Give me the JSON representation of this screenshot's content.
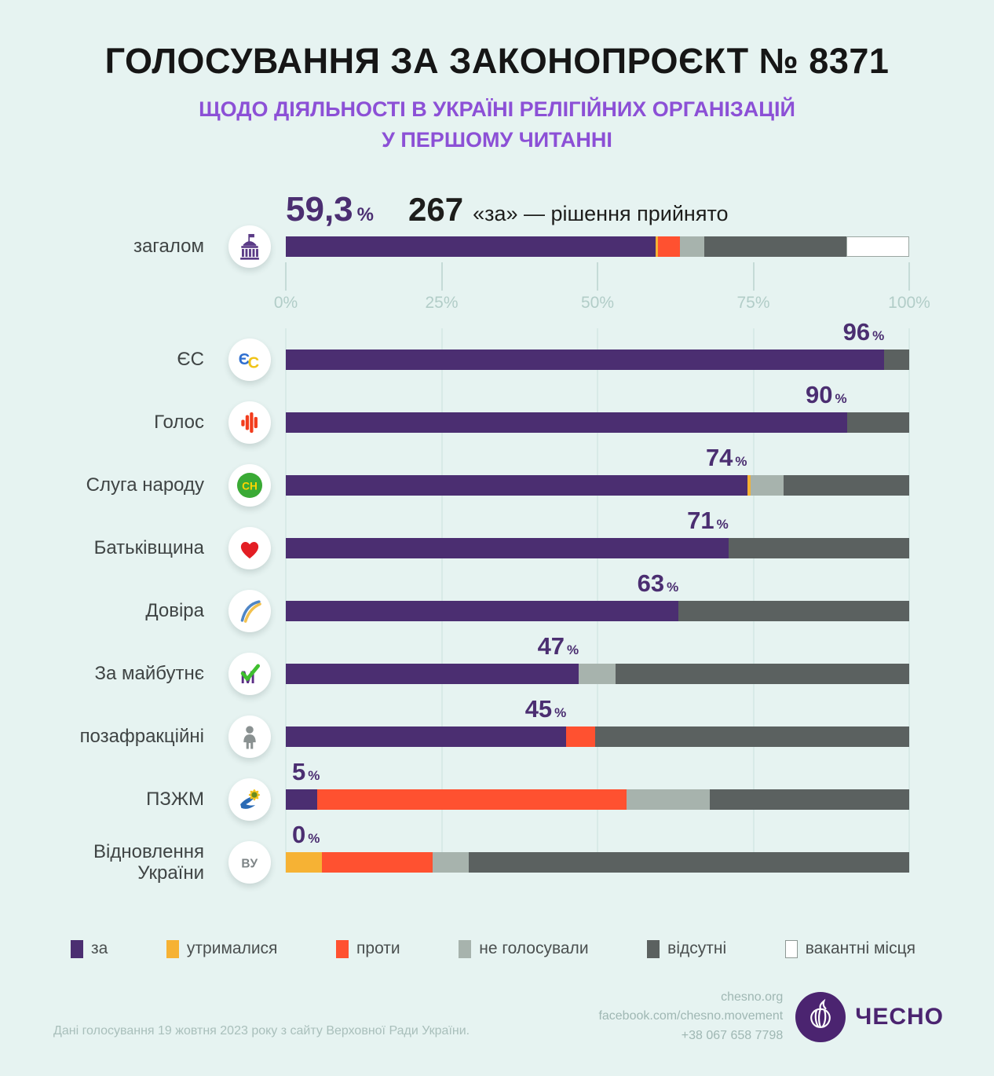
{
  "title": "ГОЛОСУВАННЯ ЗА ЗАКОНОПРОЄКТ № 8371",
  "subtitle_line1": "ЩОДО ДІЯЛЬНОСТІ В УКРАЇНІ РЕЛІГІЙНИХ ОРГАНІЗАЦІЙ",
  "subtitle_line2": "У ПЕРШОМУ ЧИТАННІ",
  "summary": {
    "percent": "59,3",
    "percent_sign": "%",
    "votes": "267",
    "caption": "«за» — рішення прийнято"
  },
  "axis": {
    "ticks": [
      "0%",
      "25%",
      "50%",
      "75%",
      "100%"
    ],
    "positions": [
      0,
      25,
      50,
      75,
      100
    ]
  },
  "colors": {
    "za": "#4b2e71",
    "utrymalysia": "#f6b234",
    "proty": "#ff5130",
    "ne_holosuvaly": "#a7b3ad",
    "vidsutni": "#5b6160",
    "vakantni": "#ffffff",
    "background": "#e6f3f1",
    "subtitle": "#8c50d6",
    "brand": "#4b2470"
  },
  "chart_data": {
    "type": "bar",
    "orientation": "horizontal",
    "stacked": true,
    "xlim": [
      0,
      100
    ],
    "unit": "percent",
    "segment_keys": [
      "za",
      "utrymalysia",
      "proty",
      "ne_holosuvaly",
      "vidsutni",
      "vakantni"
    ],
    "rows": [
      {
        "label": "загалом",
        "icon": "parliament-icon",
        "overall": true,
        "value_label": "59,3",
        "segments": {
          "za": 59.3,
          "utrymalysia": 0.4,
          "proty": 3.5,
          "ne_holosuvaly": 3.9,
          "vidsutni": 22.8,
          "vakantni": 10.1
        }
      },
      {
        "label": "ЄС",
        "icon": "eu-solidarity-icon",
        "value_label": "96",
        "segments": {
          "za": 96,
          "utrymalysia": 0,
          "proty": 0,
          "ne_holosuvaly": 0,
          "vidsutni": 4,
          "vakantni": 0
        }
      },
      {
        "label": "Голос",
        "icon": "holos-icon",
        "value_label": "90",
        "segments": {
          "za": 90,
          "utrymalysia": 0,
          "proty": 0,
          "ne_holosuvaly": 0,
          "vidsutni": 10,
          "vakantni": 0
        }
      },
      {
        "label": "Слуга народу",
        "icon": "sluha-narodu-icon",
        "value_label": "74",
        "segments": {
          "za": 74,
          "utrymalysia": 0.6,
          "proty": 0,
          "ne_holosuvaly": 5.2,
          "vidsutni": 20.2,
          "vakantni": 0
        }
      },
      {
        "label": "Батьківщина",
        "icon": "batkivshchyna-heart-icon",
        "value_label": "71",
        "segments": {
          "za": 71,
          "utrymalysia": 0,
          "proty": 0,
          "ne_holosuvaly": 0,
          "vidsutni": 29,
          "vakantni": 0
        }
      },
      {
        "label": "Довіра",
        "icon": "dovira-swoosh-icon",
        "value_label": "63",
        "segments": {
          "za": 63,
          "utrymalysia": 0,
          "proty": 0,
          "ne_holosuvaly": 0,
          "vidsutni": 37,
          "vakantni": 0
        }
      },
      {
        "label": "За майбутнє",
        "icon": "za-maibutnie-icon",
        "value_label": "47",
        "segments": {
          "za": 47,
          "utrymalysia": 0,
          "proty": 0,
          "ne_holosuvaly": 5.9,
          "vidsutni": 47.1,
          "vakantni": 0
        }
      },
      {
        "label": "позафракційні",
        "icon": "person-icon",
        "value_label": "45",
        "segments": {
          "za": 45,
          "utrymalysia": 0,
          "proty": 4.6,
          "ne_holosuvaly": 0,
          "vidsutni": 50.4,
          "vakantni": 0
        }
      },
      {
        "label": "ПЗЖМ",
        "icon": "pzhzm-sunflower-icon",
        "value_label": "5",
        "segments": {
          "za": 5,
          "utrymalysia": 0,
          "proty": 49.6,
          "ne_holosuvaly": 13.4,
          "vidsutni": 32,
          "vakantni": 0
        }
      },
      {
        "label": "Відновлення\nУкраїни",
        "icon": "vidnovlennia-ukrainy-icon",
        "value_label": "0",
        "segments": {
          "za": 0,
          "utrymalysia": 5.8,
          "proty": 17.8,
          "ne_holosuvaly": 5.7,
          "vidsutni": 70.7,
          "vakantni": 0
        }
      }
    ],
    "legend_position": "bottom"
  },
  "legend": [
    {
      "key": "za",
      "label": "за"
    },
    {
      "key": "utrymalysia",
      "label": "утрималися"
    },
    {
      "key": "proty",
      "label": "проти"
    },
    {
      "key": "ne_holosuvaly",
      "label": "не голосували"
    },
    {
      "key": "vidsutni",
      "label": "відсутні"
    },
    {
      "key": "vakantni",
      "label": "вакантні місця"
    }
  ],
  "footer": {
    "source": "Дані голосування 19 жовтня 2023 року з сайту Верховної Ради України.",
    "website": "chesno.org",
    "facebook": "facebook.com/chesno.movement",
    "phone": "+38 067 658 7798",
    "logo_text": "ЧЕСНО"
  }
}
